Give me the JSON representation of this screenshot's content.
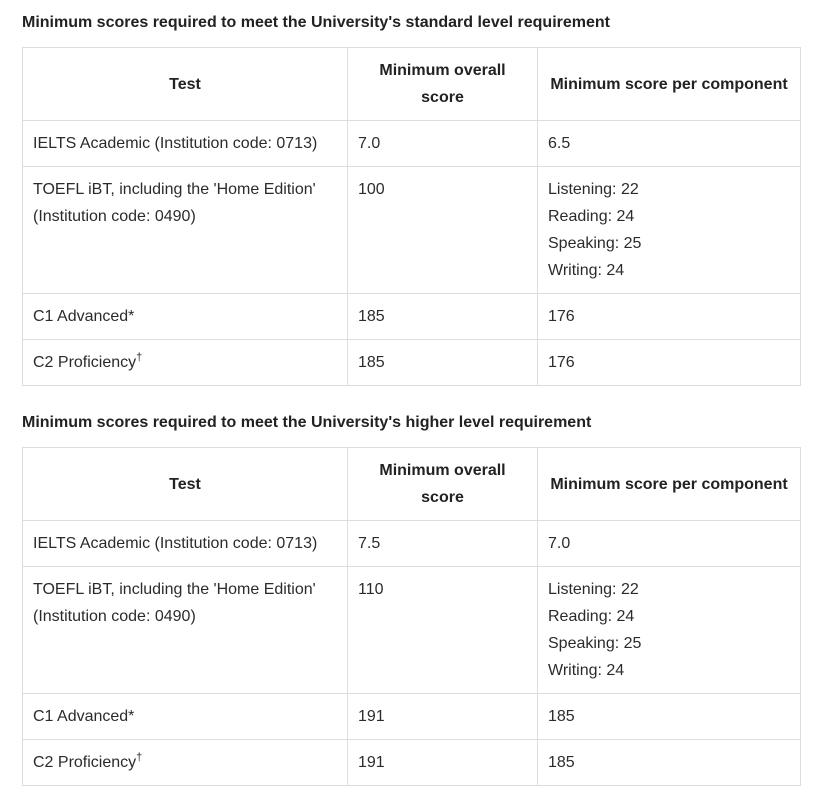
{
  "colors": {
    "background": "#ffffff",
    "border": "#dddddd",
    "heading_text": "#222222",
    "body_text": "#2b2b2b"
  },
  "sections": [
    {
      "heading": "Minimum scores required to meet the University's standard level requirement",
      "columns": [
        "Test",
        "Minimum overall score",
        "Minimum score per component"
      ],
      "rows": [
        {
          "test": "IELTS Academic (Institution code: 0713)",
          "test_sup": "",
          "overall": "7.0",
          "component": "6.5"
        },
        {
          "test": "TOEFL iBT, including the 'Home Edition' (Institution code: 0490)",
          "test_sup": "",
          "overall": "100",
          "component": [
            "Listening: 22",
            "Reading: 24",
            "Speaking: 25",
            "Writing: 24"
          ]
        },
        {
          "test": "C1 Advanced*",
          "test_sup": "",
          "overall": "185",
          "component": "176"
        },
        {
          "test": "C2 Proficiency",
          "test_sup": "†",
          "overall": "185",
          "component": "176"
        }
      ]
    },
    {
      "heading": "Minimum scores required to meet the University's higher level requirement",
      "columns": [
        "Test",
        "Minimum overall score",
        "Minimum score per component"
      ],
      "rows": [
        {
          "test": "IELTS Academic (Institution code: 0713)",
          "test_sup": "",
          "overall": "7.5",
          "component": "7.0"
        },
        {
          "test": "TOEFL iBT, including the 'Home Edition' (Institution code: 0490)",
          "test_sup": "",
          "overall": "110",
          "component": [
            "Listening: 22",
            "Reading: 24",
            "Speaking: 25",
            "Writing: 24"
          ]
        },
        {
          "test": "C1 Advanced*",
          "test_sup": "",
          "overall": "191",
          "component": "185"
        },
        {
          "test": "C2 Proficiency",
          "test_sup": "†",
          "overall": "191",
          "component": "185"
        }
      ]
    }
  ]
}
